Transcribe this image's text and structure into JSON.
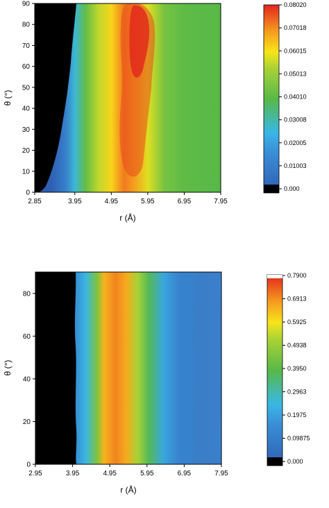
{
  "colors": {
    "black_region": "#000000",
    "blue": "#2f5fb3",
    "cyan": "#39b7e6",
    "green": "#58b947",
    "yellow": "#f7e51a",
    "orange": "#f59a1f",
    "red": "#e2261f",
    "colorbar_top": "#ffffff"
  },
  "chart_data": [
    {
      "type": "heatmap",
      "xlabel": "r (Å)",
      "ylabel": "θ (°)",
      "xlim": [
        2.85,
        7.95
      ],
      "ylim": [
        0,
        90
      ],
      "x_ticks": [
        "2.85",
        "3.95",
        "4.95",
        "5.95",
        "6.95",
        "7.95"
      ],
      "y_ticks": [
        "0",
        "10",
        "20",
        "30",
        "40",
        "50",
        "60",
        "70",
        "80",
        "90"
      ],
      "colorbar": {
        "ticks": [
          "0.000",
          "0.01003",
          "0.02005",
          "0.03008",
          "0.04010",
          "0.05013",
          "0.06015",
          "0.07018",
          "0.08020"
        ],
        "min": 0,
        "max": 0.0802
      },
      "profile": {
        "r": [
          3.3,
          3.7,
          3.95,
          4.25,
          4.6,
          4.95,
          5.3,
          5.6,
          5.95,
          6.4,
          6.95,
          7.95
        ],
        "value": [
          0.0,
          0.012,
          0.027,
          0.042,
          0.055,
          0.062,
          0.072,
          0.068,
          0.058,
          0.045,
          0.041,
          0.04
        ]
      },
      "peak_r_by_theta": {
        "theta": [
          0,
          40,
          60,
          90
        ],
        "r": [
          5.15,
          5.3,
          5.45,
          5.55
        ]
      }
    },
    {
      "type": "heatmap",
      "xlabel": "r (Å)",
      "ylabel": "θ (°)",
      "xlim": [
        2.95,
        7.95
      ],
      "ylim": [
        0,
        90
      ],
      "x_ticks": [
        "2.95",
        "3.95",
        "4.95",
        "5.95",
        "6.95",
        "7.95"
      ],
      "y_ticks": [
        "0",
        "20",
        "40",
        "60",
        "80"
      ],
      "colorbar": {
        "ticks": [
          "0.000",
          "0.09875",
          "0.1975",
          "0.2963",
          "0.3950",
          "0.4938",
          "0.5925",
          "0.6913",
          "0.7900"
        ],
        "min": 0,
        "max": 0.79
      },
      "profile": {
        "r": [
          3.95,
          4.3,
          4.6,
          4.8,
          5.1,
          5.4,
          5.7,
          6.0,
          6.4,
          6.8,
          7.4,
          7.95
        ],
        "value": [
          0.12,
          0.25,
          0.45,
          0.65,
          0.7,
          0.66,
          0.52,
          0.38,
          0.22,
          0.13,
          0.12,
          0.13
        ]
      }
    }
  ]
}
